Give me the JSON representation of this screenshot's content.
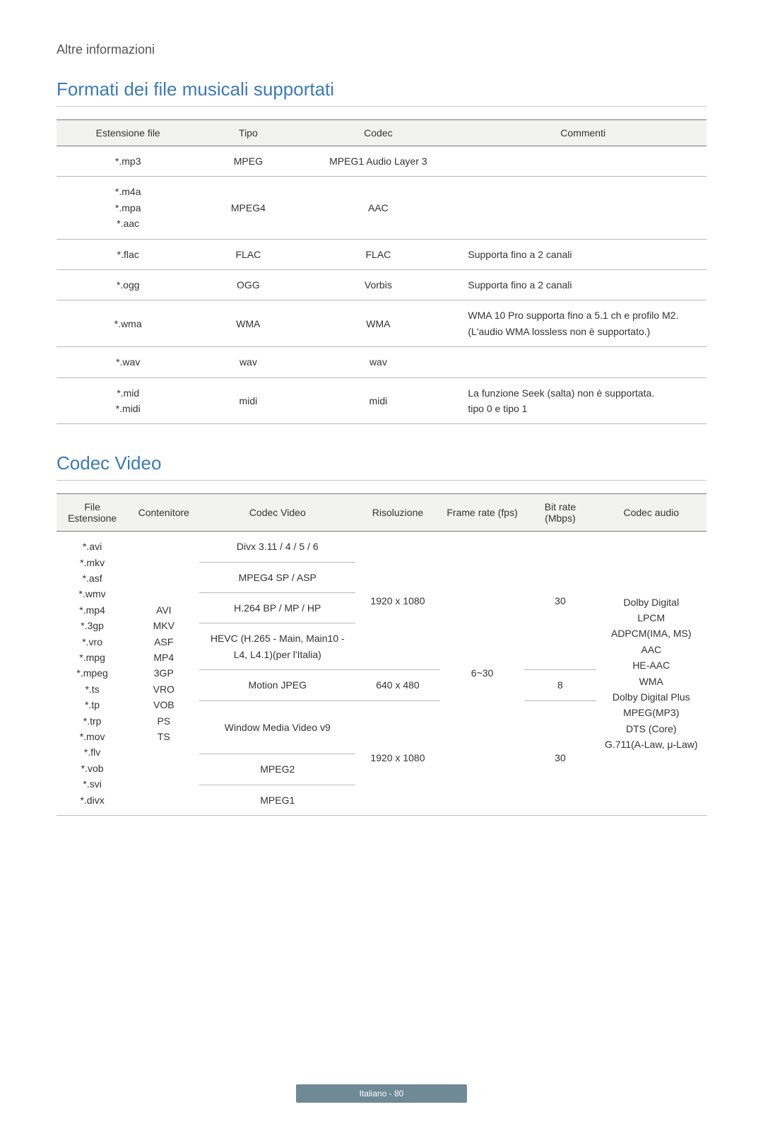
{
  "breadcrumb": "Altre informazioni",
  "music_section": {
    "title": "Formati dei file musicali supportati",
    "headers": [
      "Estensione file",
      "Tipo",
      "Codec",
      "Commenti"
    ],
    "rows": [
      {
        "ext": [
          "*.mp3"
        ],
        "type": "MPEG",
        "codec": "MPEG1 Audio Layer 3",
        "comment": ""
      },
      {
        "ext": [
          "*.m4a",
          "*.mpa",
          "*.aac"
        ],
        "type": "MPEG4",
        "codec": "AAC",
        "comment": ""
      },
      {
        "ext": [
          "*.flac"
        ],
        "type": "FLAC",
        "codec": "FLAC",
        "comment": "Supporta fino a 2 canali"
      },
      {
        "ext": [
          "*.ogg"
        ],
        "type": "OGG",
        "codec": "Vorbis",
        "comment": "Supporta fino a 2 canali"
      },
      {
        "ext": [
          "*.wma"
        ],
        "type": "WMA",
        "codec": "WMA",
        "comment": "WMA 10 Pro supporta fino a 5.1 ch e profilo M2.\n(L'audio WMA lossless non è supportato.)"
      },
      {
        "ext": [
          "*.wav"
        ],
        "type": "wav",
        "codec": "wav",
        "comment": ""
      },
      {
        "ext": [
          "*.mid",
          "*.midi"
        ],
        "type": "midi",
        "codec": "midi",
        "comment": "La funzione Seek (salta) non è supportata.\ntipo 0 e tipo 1"
      }
    ]
  },
  "video_section": {
    "title": "Codec Video",
    "headers": [
      "File Estensione",
      "Contenitore",
      "Codec Video",
      "Risoluzione",
      "Frame rate (fps)",
      "Bit rate (Mbps)",
      "Codec audio"
    ],
    "file_ext": [
      "*.avi",
      "*.mkv",
      "*.asf",
      "*.wmv",
      "*.mp4",
      "*.3gp",
      "*.vro",
      "*.mpg",
      "*.mpeg",
      "*.ts",
      "*.tp",
      "*.trp",
      "*.mov",
      "*.flv",
      "*.vob",
      "*.svi",
      "*.divx"
    ],
    "container": [
      "AVI",
      "MKV",
      "ASF",
      "MP4",
      "3GP",
      "VRO",
      "VOB",
      "PS",
      "TS"
    ],
    "codec_rows": [
      {
        "codec": "Divx 3.11 / 4 / 5 / 6"
      },
      {
        "codec": "MPEG4 SP / ASP"
      },
      {
        "codec": "H.264 BP / MP / HP"
      },
      {
        "codec": "HEVC (H.265 - Main, Main10 - L4, L4.1)(per l'Italia)"
      },
      {
        "codec": "Motion JPEG"
      },
      {
        "codec": "Window Media Video v9"
      },
      {
        "codec": "MPEG2"
      },
      {
        "codec": "MPEG1"
      }
    ],
    "res_1": "1920 x 1080",
    "res_2": "640 x 480",
    "res_3": "1920 x 1080",
    "fps": "6~30",
    "bitrate_1": "30",
    "bitrate_2": "8",
    "bitrate_3": "30",
    "audio_codec": [
      "Dolby Digital",
      "LPCM",
      "ADPCM(IMA, MS)",
      "AAC",
      "HE-AAC",
      "WMA",
      "Dolby Digital Plus",
      "MPEG(MP3)",
      "DTS (Core)",
      "G.711(A-Law, μ-Law)"
    ]
  },
  "footer": "Italiano - 80",
  "style": {
    "accent_color": "#3a7ab8",
    "header_bg": "#f2f2f0",
    "footer_badge_bg": "#6f8a97",
    "border_color": "#b8b8b8"
  }
}
